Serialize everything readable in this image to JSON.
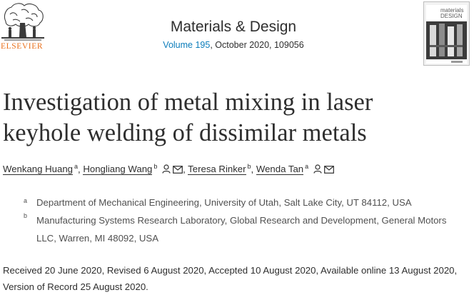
{
  "publisher": {
    "wordmark": "ELSEVIER"
  },
  "journal": {
    "title": "Materials & Design",
    "volume_link": "Volume 195",
    "issue_info": ", October 2020, 109056",
    "cover_text": "materials DESIGN"
  },
  "article": {
    "title": "Investigation of metal mixing in laser keyhole welding of dissimilar metals"
  },
  "authors": [
    {
      "name": "Wenkang Huang",
      "aff": "a"
    },
    {
      "name": "Hongliang Wang",
      "aff": "b"
    },
    {
      "name": "Teresa Rinker",
      "aff": "b"
    },
    {
      "name": "Wenda Tan",
      "aff": "a"
    }
  ],
  "separator": ",",
  "affiliations": [
    {
      "label": "a",
      "text": "Department of Mechanical Engineering, University of Utah, Salt Lake City, UT 84112, USA"
    },
    {
      "label": "b",
      "text": "Manufacturing Systems Research Laboratory, Global Research and Development, General Motors LLC, Warren, MI 48092, USA"
    }
  ],
  "history": "Received 20 June 2020, Revised 6 August 2020, Accepted 10 August 2020, Available online 13 August 2020, Version of Record 25 August 2020.",
  "icons": {
    "person": "person-icon",
    "email": "envelope-icon",
    "logo": "elsevier-tree-logo",
    "cover": "journal-cover-image"
  },
  "colors": {
    "link": "#0c7dbb",
    "elsevier_orange": "#e9711c",
    "text": "#2e2e2e",
    "muted": "#505050"
  }
}
